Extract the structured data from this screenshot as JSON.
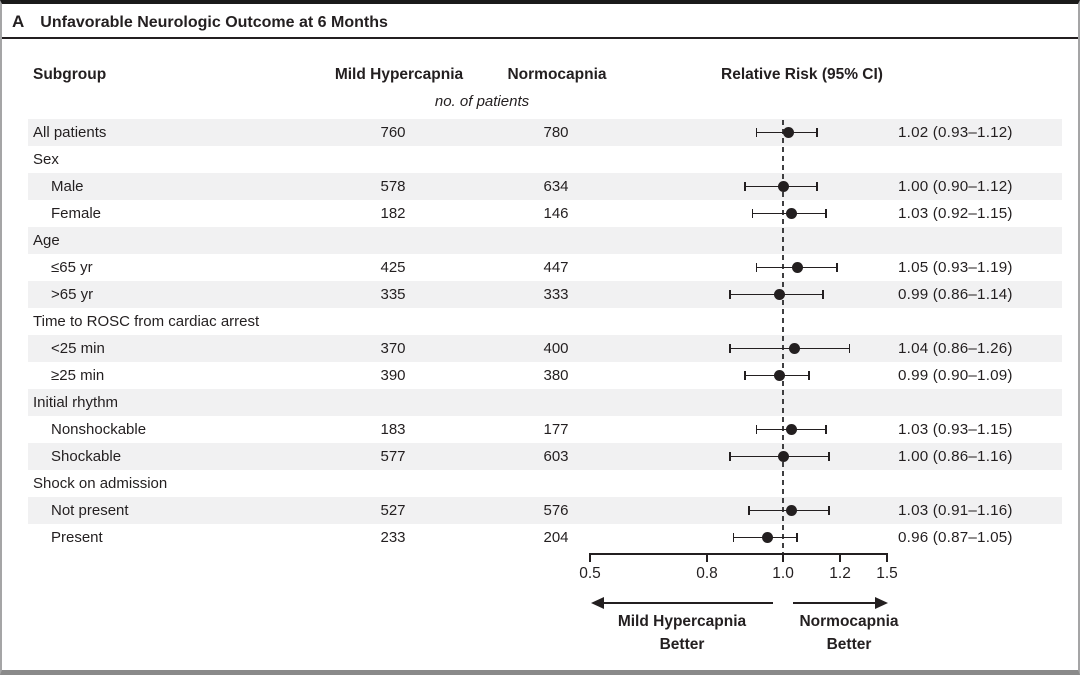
{
  "figure": {
    "panel_letter": "A",
    "title": "Unfavorable Neurologic Outcome at 6 Months"
  },
  "table": {
    "col_subgroup": "Subgroup",
    "col_group1": "Mild Hypercapnia",
    "col_group2": "Normocapnia",
    "unit_note": "no. of patients",
    "col_rr": "Relative Risk (95% CI)"
  },
  "chart_data": {
    "type": "scatter",
    "variant": "forest-plot",
    "title": "Unfavorable Neurologic Outcome at 6 Months",
    "x_axis": {
      "ticks": [
        0.5,
        0.8,
        1.0,
        1.2,
        1.5
      ],
      "tick_labels": [
        "0.5",
        "0.8",
        "1.0",
        "1.2",
        "1.5"
      ],
      "reference_line": 1.0
    },
    "direction_labels": {
      "left": [
        "Mild Hypercapnia",
        "Better"
      ],
      "right": [
        "Normocapnia",
        "Better"
      ]
    },
    "rows": [
      {
        "label": "All patients",
        "indent": 0,
        "mild_hypercapnia": 760,
        "normocapnia": 780,
        "rr": 1.02,
        "ci_low": 0.93,
        "ci_high": 1.12,
        "ci_text": "1.02 (0.93–1.12)",
        "shaded": true
      },
      {
        "label": "Sex",
        "indent": 0,
        "group_header": true,
        "shaded": false
      },
      {
        "label": "Male",
        "indent": 1,
        "mild_hypercapnia": 578,
        "normocapnia": 634,
        "rr": 1.0,
        "ci_low": 0.9,
        "ci_high": 1.12,
        "ci_text": "1.00 (0.90–1.12)",
        "shaded": true
      },
      {
        "label": "Female",
        "indent": 1,
        "mild_hypercapnia": 182,
        "normocapnia": 146,
        "rr": 1.03,
        "ci_low": 0.92,
        "ci_high": 1.15,
        "ci_text": "1.03 (0.92–1.15)",
        "shaded": false
      },
      {
        "label": "Age",
        "indent": 0,
        "group_header": true,
        "shaded": true
      },
      {
        "label": "≤65 yr",
        "indent": 1,
        "mild_hypercapnia": 425,
        "normocapnia": 447,
        "rr": 1.05,
        "ci_low": 0.93,
        "ci_high": 1.19,
        "ci_text": "1.05 (0.93–1.19)",
        "shaded": false
      },
      {
        "label": ">65 yr",
        "indent": 1,
        "mild_hypercapnia": 335,
        "normocapnia": 333,
        "rr": 0.99,
        "ci_low": 0.86,
        "ci_high": 1.14,
        "ci_text": "0.99 (0.86–1.14)",
        "shaded": true
      },
      {
        "label": "Time to ROSC from cardiac arrest",
        "indent": 0,
        "group_header": true,
        "shaded": false
      },
      {
        "label": "<25 min",
        "indent": 1,
        "mild_hypercapnia": 370,
        "normocapnia": 400,
        "rr": 1.04,
        "ci_low": 0.86,
        "ci_high": 1.26,
        "ci_text": "1.04 (0.86–1.26)",
        "shaded": true
      },
      {
        "label": "≥25 min",
        "indent": 1,
        "mild_hypercapnia": 390,
        "normocapnia": 380,
        "rr": 0.99,
        "ci_low": 0.9,
        "ci_high": 1.09,
        "ci_text": "0.99 (0.90–1.09)",
        "shaded": false
      },
      {
        "label": "Initial rhythm",
        "indent": 0,
        "group_header": true,
        "shaded": true
      },
      {
        "label": "Nonshockable",
        "indent": 1,
        "mild_hypercapnia": 183,
        "normocapnia": 177,
        "rr": 1.03,
        "ci_low": 0.93,
        "ci_high": 1.15,
        "ci_text": "1.03 (0.93–1.15)",
        "shaded": false
      },
      {
        "label": "Shockable",
        "indent": 1,
        "mild_hypercapnia": 577,
        "normocapnia": 603,
        "rr": 1.0,
        "ci_low": 0.86,
        "ci_high": 1.16,
        "ci_text": "1.00 (0.86–1.16)",
        "shaded": true
      },
      {
        "label": "Shock on admission",
        "indent": 0,
        "group_header": true,
        "shaded": false
      },
      {
        "label": "Not present",
        "indent": 1,
        "mild_hypercapnia": 527,
        "normocapnia": 576,
        "rr": 1.03,
        "ci_low": 0.91,
        "ci_high": 1.16,
        "ci_text": "1.03 (0.91–1.16)",
        "shaded": true
      },
      {
        "label": "Present",
        "indent": 1,
        "mild_hypercapnia": 233,
        "normocapnia": 204,
        "rr": 0.96,
        "ci_low": 0.87,
        "ci_high": 1.05,
        "ci_text": "0.96 (0.87–1.05)",
        "shaded": false
      }
    ]
  },
  "colors": {
    "text": "#231f20",
    "row_shade": "#f1f1f2",
    "marker": "#231f20",
    "reference_line": "#3f3f41",
    "border_top": "#1a1a1a",
    "border_bottom": "#8a8a8a",
    "border_side": "#a5a5a6"
  }
}
